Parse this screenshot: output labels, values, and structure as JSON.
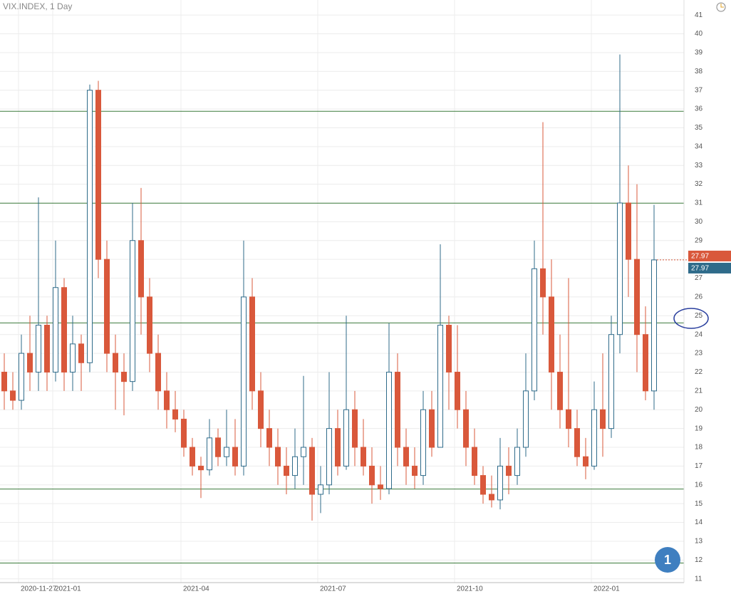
{
  "chart_data": {
    "type": "candlestick",
    "title": "VIX.INDEX, 1 Day",
    "categories": [
      null,
      null,
      "2020-11-27",
      null,
      null,
      null,
      "2021-01",
      null,
      null,
      null,
      null,
      null,
      null,
      null,
      null,
      null,
      null,
      null,
      null,
      null,
      null,
      "2021-04",
      null,
      null,
      null,
      null,
      null,
      null,
      null,
      null,
      null,
      null,
      null,
      null,
      null,
      null,
      null,
      "2021-07",
      null,
      null,
      null,
      null,
      null,
      null,
      null,
      null,
      null,
      null,
      null,
      null,
      null,
      null,
      null,
      "2021-10",
      null,
      null,
      null,
      null,
      null,
      null,
      null,
      null,
      null,
      null,
      null,
      null,
      null,
      null,
      null,
      "2022-01",
      null,
      null,
      null,
      null,
      null,
      null,
      null
    ],
    "open": [
      22,
      21,
      20.5,
      23,
      22,
      24.5,
      22,
      26.5,
      22,
      23.5,
      22.5,
      37,
      28,
      23,
      22,
      21.5,
      29,
      26,
      23,
      21,
      20,
      19.5,
      18,
      17,
      16.8,
      18.5,
      17.5,
      18,
      17,
      26,
      21,
      19,
      18,
      17,
      16.5,
      17.5,
      18,
      15.5,
      16,
      19,
      17,
      20,
      18,
      17,
      16,
      15.8,
      22,
      18,
      17,
      16.5,
      20,
      18,
      24.5,
      22,
      20,
      18,
      16.5,
      15.5,
      15.2,
      17,
      16.5,
      18,
      21,
      27.5,
      26,
      22,
      20,
      19,
      17.5,
      17,
      20,
      19,
      24,
      31,
      28,
      24,
      21
    ],
    "high": [
      23,
      22,
      24,
      25,
      31.3,
      25,
      29,
      27,
      25,
      24,
      37.3,
      37.5,
      29,
      24,
      23,
      31,
      31.8,
      27,
      24,
      22,
      21,
      20,
      18.5,
      17.5,
      19.5,
      19,
      20,
      19.5,
      29,
      27,
      22,
      20,
      19,
      18,
      19,
      21.8,
      18.5,
      17,
      22,
      20,
      25,
      21,
      19.5,
      18,
      17,
      24.6,
      23,
      19,
      18,
      21,
      21,
      28.8,
      25,
      24.5,
      21,
      19,
      17,
      16.5,
      18.5,
      18,
      19,
      23,
      29,
      35.3,
      28,
      24,
      27,
      20,
      18.5,
      21.5,
      23,
      25,
      38.9,
      33,
      32,
      25.5,
      30.9
    ],
    "low": [
      20,
      20,
      20,
      21,
      21,
      21,
      21.5,
      21,
      21,
      21,
      22,
      27,
      22,
      20,
      19.7,
      21,
      24,
      22,
      20,
      19,
      18.8,
      17.5,
      16.5,
      15.3,
      16.5,
      17,
      17,
      16.5,
      16.5,
      20,
      18,
      17,
      16,
      15.5,
      15.8,
      16,
      14.1,
      14.5,
      15.5,
      16.5,
      16.8,
      17,
      16.5,
      15,
      15.2,
      15.5,
      17,
      16,
      15.8,
      16,
      17.5,
      18,
      20,
      19,
      17,
      16,
      15,
      14.8,
      14.7,
      15.5,
      16,
      17.5,
      20.5,
      24,
      20,
      19,
      18,
      17,
      16.3,
      16.8,
      17.5,
      18.5,
      23,
      26,
      22,
      20.5,
      20
    ],
    "close": [
      21,
      20.5,
      23,
      22,
      24.5,
      22,
      26.5,
      22,
      23.5,
      22.5,
      37,
      28,
      23,
      22,
      21.5,
      29,
      26,
      23,
      21,
      20,
      19.5,
      18,
      17,
      16.8,
      18.5,
      17.5,
      18,
      17,
      26,
      21,
      19,
      18,
      17,
      16.5,
      17.5,
      18,
      15.5,
      16,
      19,
      17,
      20,
      18,
      17,
      16,
      15.8,
      22,
      18,
      17,
      16.5,
      20,
      18,
      24.5,
      22,
      20,
      18,
      16.5,
      15.5,
      15.2,
      17,
      16.5,
      18,
      21,
      27.5,
      26,
      22,
      20,
      19,
      17.5,
      17,
      20,
      19,
      24,
      31,
      28,
      24,
      21,
      27.97
    ],
    "up_color": "#2f6b8a",
    "down_color": "#d9583b",
    "ylim": [
      10.8,
      41.8
    ],
    "yticks": [
      11,
      12,
      13,
      14,
      15,
      16,
      17,
      18,
      19,
      20,
      21,
      22,
      23,
      24,
      25,
      26,
      27,
      28,
      29,
      30,
      31,
      32,
      33,
      34,
      35,
      36,
      37,
      38,
      39,
      40,
      41
    ],
    "grid": true,
    "levels": [
      35.88,
      30.99,
      24.62,
      15.78,
      11.84
    ],
    "level_color": "#3b7a3b",
    "price_markers": [
      {
        "value": 27.97,
        "color": "#d9583b"
      },
      {
        "value": 27.97,
        "color": "#2f6b8a"
      }
    ],
    "annotation": "1"
  }
}
